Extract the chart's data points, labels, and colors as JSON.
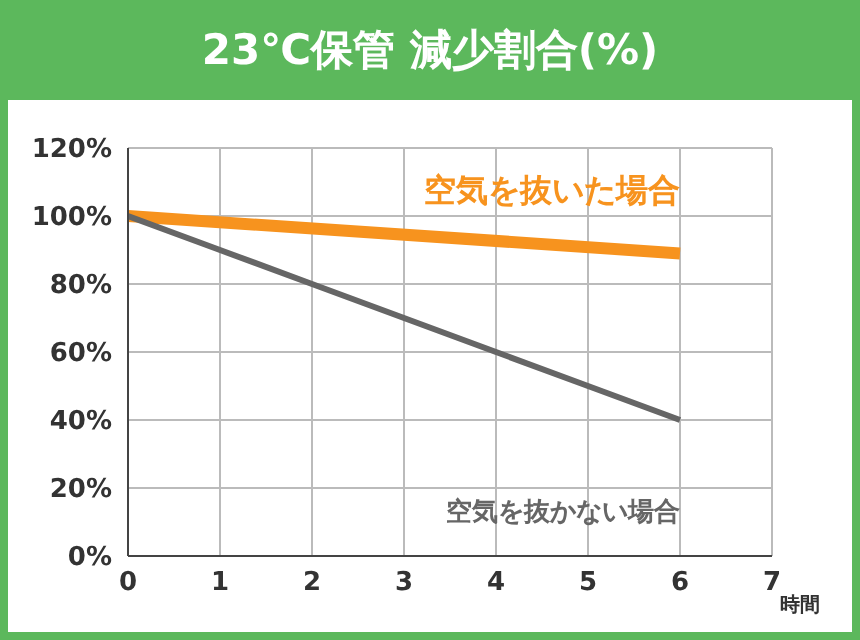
{
  "chart_data": {
    "type": "line",
    "title": "23℃保管 減少割合(%)",
    "xlabel": "時間",
    "series": [
      {
        "name": "空気を抜いた場合",
        "color": "#f7931e",
        "x": [
          0,
          6
        ],
        "values": [
          100,
          89
        ]
      },
      {
        "name": "空気を抜かない場合",
        "color": "#666666",
        "x": [
          0,
          1,
          2,
          3,
          4,
          5,
          6
        ],
        "values": [
          100,
          90,
          80,
          70,
          60,
          50,
          40
        ]
      }
    ],
    "xlim": [
      0,
      7
    ],
    "xticks": [
      0,
      1,
      2,
      3,
      4,
      5,
      6,
      7
    ],
    "ylim": [
      0,
      120
    ],
    "yticks": [
      {
        "value": 0,
        "label": "0%"
      },
      {
        "value": 20,
        "label": "20%"
      },
      {
        "value": 40,
        "label": "40%"
      },
      {
        "value": 60,
        "label": "60%"
      },
      {
        "value": 80,
        "label": "80%"
      },
      {
        "value": 100,
        "label": "100%"
      },
      {
        "value": 120,
        "label": "120%"
      }
    ],
    "grid": true,
    "marker": "none",
    "line_style": "solid"
  }
}
